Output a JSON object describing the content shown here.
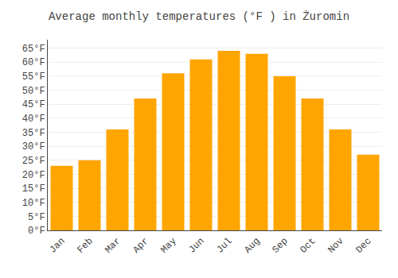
{
  "chart_data": {
    "type": "bar",
    "title": "Average monthly temperatures (°F ) in Żuromin",
    "categories": [
      "Jan",
      "Feb",
      "Mar",
      "Apr",
      "May",
      "Jun",
      "Jul",
      "Aug",
      "Sep",
      "Oct",
      "Nov",
      "Dec"
    ],
    "values": [
      23,
      25,
      36,
      47,
      56,
      61,
      64,
      63,
      55,
      47,
      36,
      27
    ],
    "color": "#FFA500",
    "ylim": [
      0,
      68
    ],
    "yticks": [
      {
        "value": 0,
        "label": "0°F"
      },
      {
        "value": 5,
        "label": "5°F"
      },
      {
        "value": 10,
        "label": "10°F"
      },
      {
        "value": 15,
        "label": "15°F"
      },
      {
        "value": 20,
        "label": "20°F"
      },
      {
        "value": 25,
        "label": "25°F"
      },
      {
        "value": 30,
        "label": "30°F"
      },
      {
        "value": 35,
        "label": "35°F"
      },
      {
        "value": 40,
        "label": "40°F"
      },
      {
        "value": 45,
        "label": "45°F"
      },
      {
        "value": 50,
        "label": "50°F"
      },
      {
        "value": 55,
        "label": "55°F"
      },
      {
        "value": 60,
        "label": "60°F"
      },
      {
        "value": 65,
        "label": "65°F"
      }
    ],
    "grid": true
  }
}
